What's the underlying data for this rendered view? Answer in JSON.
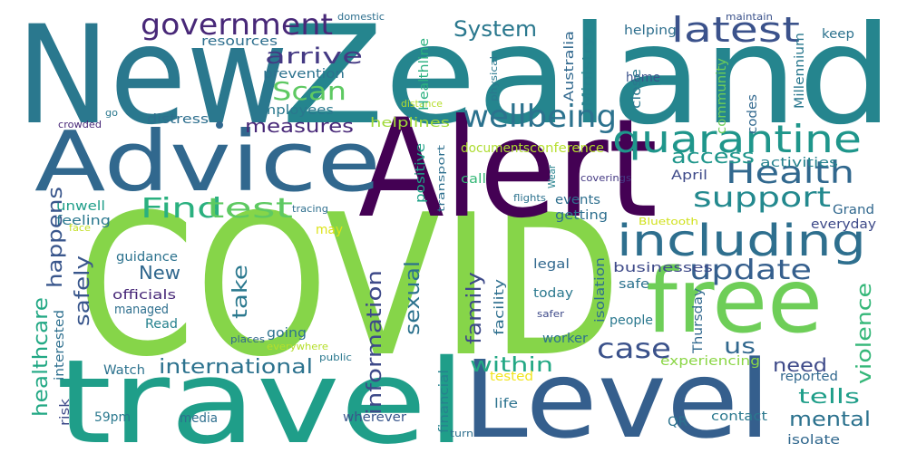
{
  "word_cloud": {
    "palette": {
      "light_green": "#b5de2b",
      "green": "#86d549",
      "teal": "#1f9e89",
      "blue": "#31688e",
      "purple": "#482878",
      "dark_purple": "#440154",
      "yellow": "#fde725"
    },
    "words": [
      {
        "id": "w-new-1",
        "text": "New",
        "color": "#2a788e"
      },
      {
        "id": "w-zealand",
        "text": "Zealand",
        "color": "#25858e"
      },
      {
        "id": "w-covid",
        "text": "COVID",
        "color": "#86d549"
      },
      {
        "id": "w-alert",
        "text": "Alert",
        "color": "#440154"
      },
      {
        "id": "w-advice",
        "text": "Advice",
        "color": "#31688e"
      },
      {
        "id": "w-travel",
        "text": "travel",
        "color": "#1f9e89"
      },
      {
        "id": "w-level",
        "text": "Level",
        "color": "#355f8d"
      },
      {
        "id": "w-free",
        "text": "free",
        "color": "#6ece58"
      },
      {
        "id": "w-including",
        "text": "including",
        "color": "#2e6f8e"
      },
      {
        "id": "w-quarantine",
        "text": "quarantine",
        "color": "#1f968b"
      },
      {
        "id": "w-wellbeing",
        "text": "wellbeing",
        "color": "#2c728e"
      },
      {
        "id": "w-government",
        "text": "government",
        "color": "#482878"
      },
      {
        "id": "w-latest",
        "text": "latest",
        "color": "#3b528b"
      },
      {
        "id": "w-health",
        "text": "Health",
        "color": "#31688e"
      },
      {
        "id": "w-support",
        "text": "support",
        "color": "#23898e"
      },
      {
        "id": "w-find",
        "text": "Find",
        "color": "#2ab07f"
      },
      {
        "id": "w-test",
        "text": "test",
        "color": "#5ec962"
      },
      {
        "id": "w-update",
        "text": "update",
        "color": "#355f8d"
      },
      {
        "id": "w-case",
        "text": "case",
        "color": "#3b528b"
      },
      {
        "id": "w-scan",
        "text": "Scan",
        "color": "#5ec962"
      },
      {
        "id": "w-arrive",
        "text": "arrive",
        "color": "#443983"
      },
      {
        "id": "w-system",
        "text": "System",
        "color": "#2a788e"
      },
      {
        "id": "w-international",
        "text": "international",
        "color": "#2c728e"
      },
      {
        "id": "w-information",
        "text": "information",
        "color": "#3e4a89"
      },
      {
        "id": "w-access",
        "text": "access",
        "color": "#1f968b"
      },
      {
        "id": "w-within",
        "text": "within",
        "color": "#22a884"
      },
      {
        "id": "w-tells",
        "text": "tells",
        "color": "#1f9e89"
      },
      {
        "id": "w-mental",
        "text": "mental",
        "color": "#2c728e"
      },
      {
        "id": "w-need",
        "text": "need",
        "color": "#3e4a89"
      },
      {
        "id": "w-us",
        "text": "us",
        "color": "#31688e"
      },
      {
        "id": "w-take",
        "text": "take",
        "color": "#2a788e"
      },
      {
        "id": "w-sexual",
        "text": "sexual",
        "color": "#2c728e"
      },
      {
        "id": "w-family",
        "text": "family",
        "color": "#3e4a89"
      },
      {
        "id": "w-violence",
        "text": "violence",
        "color": "#35b779"
      },
      {
        "id": "w-measures",
        "text": "measures",
        "color": "#482878"
      },
      {
        "id": "w-happens",
        "text": "happens",
        "color": "#39568c"
      },
      {
        "id": "w-healthcare",
        "text": "healthcare",
        "color": "#22a884"
      },
      {
        "id": "w-safely",
        "text": "safely",
        "color": "#39568c"
      },
      {
        "id": "w-new-2",
        "text": "New",
        "color": "#31688e"
      },
      {
        "id": "w-resources",
        "text": "resources",
        "color": "#2e6f8e"
      },
      {
        "id": "w-prevention",
        "text": "prevention",
        "color": "#2c728e"
      },
      {
        "id": "w-employees",
        "text": "employees",
        "color": "#2a788e"
      },
      {
        "id": "w-distress",
        "text": "distress",
        "color": "#2e6f8e"
      },
      {
        "id": "w-helplines",
        "text": "helplines",
        "color": "#a0da39"
      },
      {
        "id": "w-healthline",
        "text": "Healthline",
        "color": "#2ab07f"
      },
      {
        "id": "w-australia",
        "text": "Australia",
        "color": "#31688e"
      },
      {
        "id": "w-ministry",
        "text": "Ministry",
        "color": "#26828e"
      },
      {
        "id": "w-millennium",
        "text": "Millennium",
        "color": "#2a788e"
      },
      {
        "id": "w-community",
        "text": "community",
        "color": "#6ece58"
      },
      {
        "id": "w-helping",
        "text": "helping",
        "color": "#2e6f8e"
      },
      {
        "id": "w-home",
        "text": "home",
        "color": "#3b528b"
      },
      {
        "id": "w-close",
        "text": "close",
        "color": "#2a788e"
      },
      {
        "id": "w-codes",
        "text": "codes",
        "color": "#31688e"
      },
      {
        "id": "w-keep",
        "text": "keep",
        "color": "#2c728e"
      },
      {
        "id": "w-positive",
        "text": "positive",
        "color": "#1fa187"
      },
      {
        "id": "w-documents",
        "text": "documents",
        "color": "#addc30"
      },
      {
        "id": "w-conference",
        "text": "conference",
        "color": "#b5de2b"
      },
      {
        "id": "w-activities",
        "text": "activities",
        "color": "#26828e"
      },
      {
        "id": "w-april",
        "text": "April",
        "color": "#3e4a89"
      },
      {
        "id": "w-call",
        "text": "call",
        "color": "#37b878"
      },
      {
        "id": "w-events",
        "text": "events",
        "color": "#2e6f8e"
      },
      {
        "id": "w-getting",
        "text": "getting",
        "color": "#2e6f8e"
      },
      {
        "id": "w-grand",
        "text": "Grand",
        "color": "#31688e"
      },
      {
        "id": "w-everyday",
        "text": "everyday",
        "color": "#3e4a89"
      },
      {
        "id": "w-unwell",
        "text": "unwell",
        "color": "#1f9e89"
      },
      {
        "id": "w-feeling",
        "text": "feeling",
        "color": "#2a788e"
      },
      {
        "id": "w-guidance",
        "text": "guidance",
        "color": "#2c728e"
      },
      {
        "id": "w-officials",
        "text": "officials",
        "color": "#482878"
      },
      {
        "id": "w-managed",
        "text": "managed",
        "color": "#2e6f8e"
      },
      {
        "id": "w-read",
        "text": "Read",
        "color": "#26828e"
      },
      {
        "id": "w-legal",
        "text": "legal",
        "color": "#31688e"
      },
      {
        "id": "w-businesses",
        "text": "businesses",
        "color": "#3e4a89"
      },
      {
        "id": "w-safe",
        "text": "safe",
        "color": "#2c728e"
      },
      {
        "id": "w-today",
        "text": "today",
        "color": "#2a788e"
      },
      {
        "id": "w-isolation",
        "text": "isolation",
        "color": "#2e6f8e"
      },
      {
        "id": "w-facility",
        "text": "facility",
        "color": "#2e6f8e"
      },
      {
        "id": "w-thursday",
        "text": "Thursday",
        "color": "#31688e"
      },
      {
        "id": "w-people",
        "text": "people",
        "color": "#2a788e"
      },
      {
        "id": "w-worker",
        "text": "worker",
        "color": "#2c728e"
      },
      {
        "id": "w-may",
        "text": "may",
        "color": "#dde318"
      },
      {
        "id": "w-going",
        "text": "going",
        "color": "#2c728e"
      },
      {
        "id": "w-watch",
        "text": "Watch",
        "color": "#2c728e"
      },
      {
        "id": "w-interested",
        "text": "interested",
        "color": "#2e6f8e"
      },
      {
        "id": "w-risk",
        "text": "risk",
        "color": "#3e4a89"
      },
      {
        "id": "w-59pm",
        "text": "59pm",
        "color": "#2a788e"
      },
      {
        "id": "w-media",
        "text": "media",
        "color": "#2e6f8e"
      },
      {
        "id": "w-wherever",
        "text": "wherever",
        "color": "#39568c"
      },
      {
        "id": "w-financial",
        "text": "financial",
        "color": "#26828e"
      },
      {
        "id": "w-life",
        "text": "life",
        "color": "#2c728e"
      },
      {
        "id": "w-tested",
        "text": "tested",
        "color": "#f1e51d"
      },
      {
        "id": "w-experiencing",
        "text": "experiencing",
        "color": "#8bd646"
      },
      {
        "id": "w-reported",
        "text": "reported",
        "color": "#31688e"
      },
      {
        "id": "w-contact",
        "text": "contact",
        "color": "#2a788e"
      },
      {
        "id": "w-qr",
        "text": "QR",
        "color": "#2c728e"
      },
      {
        "id": "w-isolate",
        "text": "isolate",
        "color": "#31688e"
      },
      {
        "id": "w-turn",
        "text": "turn",
        "color": "#2e6f8e"
      },
      {
        "id": "w-public",
        "text": "public",
        "color": "#2a788e"
      },
      {
        "id": "w-places",
        "text": "places",
        "color": "#31688e"
      },
      {
        "id": "w-everywhere",
        "text": "everywhere",
        "color": "#b5de2b"
      },
      {
        "id": "w-safer",
        "text": "safer",
        "color": "#3e4a89"
      },
      {
        "id": "w-face",
        "text": "face",
        "color": "#c2df23"
      },
      {
        "id": "w-tracing",
        "text": "tracing",
        "color": "#2e6f8e"
      },
      {
        "id": "w-flights",
        "text": "flights",
        "color": "#2c728e"
      },
      {
        "id": "w-bluetooth",
        "text": "Bluetooth",
        "color": "#d0e11c"
      },
      {
        "id": "w-coverings",
        "text": "coverings",
        "color": "#443983"
      },
      {
        "id": "w-wear",
        "text": "Wear",
        "color": "#26828e"
      },
      {
        "id": "w-transport",
        "text": "transport",
        "color": "#2e6f8e"
      },
      {
        "id": "w-physical",
        "text": "physical",
        "color": "#2a788e"
      },
      {
        "id": "w-distance",
        "text": "distance",
        "color": "#b5de2b"
      },
      {
        "id": "w-crowded",
        "text": "crowded",
        "color": "#482878"
      },
      {
        "id": "w-go",
        "text": "go",
        "color": "#2a788e"
      },
      {
        "id": "w-domestic",
        "text": "domestic",
        "color": "#2e6f8e"
      },
      {
        "id": "w-maintain",
        "text": "maintain",
        "color": "#3b528b"
      }
    ]
  }
}
